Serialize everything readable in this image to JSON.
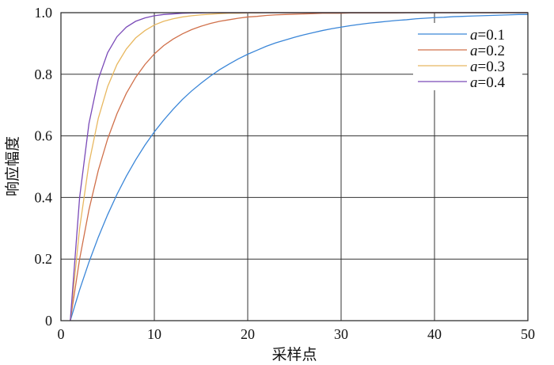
{
  "chart_data": {
    "type": "line",
    "title": "",
    "xlabel": "采样点",
    "ylabel": "响应幅度",
    "xlim": [
      0,
      50
    ],
    "ylim": [
      0,
      1.0
    ],
    "xticks": [
      "0",
      "10",
      "20",
      "30",
      "40",
      "50"
    ],
    "yticks": [
      "0",
      "0.2",
      "0.4",
      "0.6",
      "0.8",
      "1.0"
    ],
    "grid": true,
    "legend_placement": "top-right",
    "x": [
      1,
      2,
      3,
      4,
      5,
      6,
      7,
      8,
      9,
      10,
      11,
      12,
      13,
      14,
      15,
      16,
      17,
      18,
      19,
      20,
      21,
      22,
      23,
      24,
      25,
      26,
      27,
      28,
      29,
      30,
      31,
      32,
      33,
      34,
      35,
      36,
      37,
      38,
      39,
      40,
      41,
      42,
      43,
      44,
      45,
      46,
      47,
      48,
      49,
      50
    ],
    "series": [
      {
        "name": "a=0.1",
        "label_italic": "a",
        "label_rest": "=0.1",
        "color": "#3a86d8",
        "values": [
          0,
          0.1,
          0.19,
          0.271,
          0.344,
          0.41,
          0.469,
          0.522,
          0.57,
          0.613,
          0.651,
          0.686,
          0.718,
          0.746,
          0.771,
          0.794,
          0.815,
          0.833,
          0.85,
          0.865,
          0.878,
          0.891,
          0.902,
          0.911,
          0.92,
          0.928,
          0.935,
          0.942,
          0.948,
          0.953,
          0.958,
          0.962,
          0.966,
          0.969,
          0.972,
          0.975,
          0.977,
          0.98,
          0.982,
          0.984,
          0.985,
          0.987,
          0.988,
          0.989,
          0.99,
          0.991,
          0.992,
          0.993,
          0.994,
          0.994
        ]
      },
      {
        "name": "a=0.2",
        "label_italic": "a",
        "label_rest": "=0.2",
        "color": "#d0704a",
        "values": [
          0,
          0.2,
          0.36,
          0.488,
          0.59,
          0.672,
          0.738,
          0.79,
          0.832,
          0.866,
          0.893,
          0.914,
          0.931,
          0.945,
          0.956,
          0.965,
          0.972,
          0.977,
          0.982,
          0.986,
          0.988,
          0.991,
          0.993,
          0.994,
          0.995,
          0.996,
          0.997,
          0.998,
          0.998,
          0.998,
          0.999,
          0.999,
          0.999,
          0.999,
          0.999,
          0.999,
          1,
          1,
          1,
          1,
          1,
          1,
          1,
          1,
          1,
          1,
          1,
          1,
          1,
          1
        ]
      },
      {
        "name": "a=0.3",
        "label_italic": "a",
        "label_rest": "=0.3",
        "color": "#e8b860",
        "values": [
          0,
          0.3,
          0.51,
          0.657,
          0.76,
          0.832,
          0.882,
          0.918,
          0.942,
          0.96,
          0.972,
          0.98,
          0.986,
          0.99,
          0.993,
          0.995,
          0.997,
          0.998,
          0.998,
          0.999,
          0.999,
          1,
          1,
          1,
          1,
          1,
          1,
          1,
          1,
          1,
          1,
          1,
          1,
          1,
          1,
          1,
          1,
          1,
          1,
          1,
          1,
          1,
          1,
          1,
          1,
          1,
          1,
          1,
          1,
          1
        ]
      },
      {
        "name": "a=0.4",
        "label_italic": "a",
        "label_rest": "=0.4",
        "color": "#7a4ab8",
        "values": [
          0,
          0.4,
          0.64,
          0.784,
          0.87,
          0.922,
          0.953,
          0.972,
          0.983,
          0.99,
          0.994,
          0.996,
          0.998,
          0.999,
          0.999,
          1,
          1,
          1,
          1,
          1,
          1,
          1,
          1,
          1,
          1,
          1,
          1,
          1,
          1,
          1,
          1,
          1,
          1,
          1,
          1,
          1,
          1,
          1,
          1,
          1,
          1,
          1,
          1,
          1,
          1,
          1,
          1,
          1,
          1,
          1
        ]
      }
    ]
  }
}
